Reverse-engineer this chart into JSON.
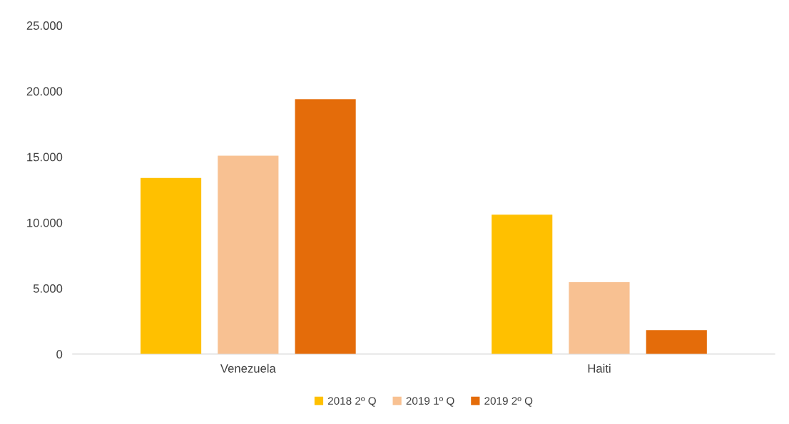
{
  "chart_data": {
    "type": "bar",
    "categories": [
      "Venezuela",
      "Haiti"
    ],
    "series": [
      {
        "name": "2018 2º Q",
        "color": "#ffc000",
        "values": [
          13400,
          10600
        ]
      },
      {
        "name": "2019 1º Q",
        "color": "#f8c192",
        "values": [
          15090,
          5470
        ]
      },
      {
        "name": "2019 2º Q",
        "color": "#e46c0a",
        "values": [
          19390,
          1815
        ]
      }
    ],
    "ylim": [
      0,
      25000
    ],
    "yticks": [
      0,
      {
        "value": 5000,
        "label": "5.000"
      },
      {
        "value": 10000,
        "label": "10.000"
      },
      {
        "value": 15000,
        "label": "15.000"
      },
      {
        "value": 20000,
        "label": "20.000"
      },
      {
        "value": 25000,
        "label": "25.000"
      }
    ],
    "grid": false,
    "legend": "bottom"
  }
}
